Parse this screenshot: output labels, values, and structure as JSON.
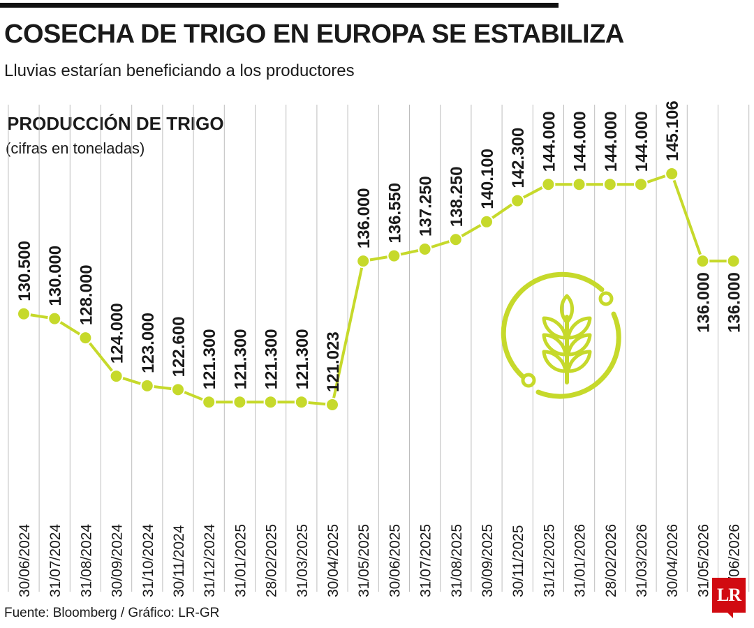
{
  "header": {
    "title": "COSECHA DE TRIGO EN EUROPA SE ESTABILIZA",
    "subtitle": "Lluvias estarían beneficiando a los productores"
  },
  "chart_header": {
    "label": "PRODUCCIÓN DE TRIGO",
    "sublabel": "(cifras en toneladas)"
  },
  "footer": {
    "source": "Fuente: Bloomberg / Gráfico: LR-GR",
    "logo": "LR"
  },
  "colors": {
    "line": "#c6d92b",
    "grid": "#bdbdbd",
    "text": "#1a1a1a",
    "logo": "#d10a11"
  },
  "icon": "wheat-icon",
  "chart_data": {
    "type": "line",
    "title": "PRODUCCIÓN DE TRIGO",
    "subtitle": "(cifras en toneladas)",
    "categories": [
      "30/06/2024",
      "31/07/2024",
      "31/08/2024",
      "30/09/2024",
      "31/10/2024",
      "30/11/2024",
      "31/12/2024",
      "31/01/2025",
      "28/02/2025",
      "31/03/2025",
      "30/04/2025",
      "31/05/2025",
      "30/06/2025",
      "31/07/2025",
      "31/08/2025",
      "30/09/2025",
      "30/11/2025",
      "31/12/2025",
      "31/01/2026",
      "28/02/2026",
      "31/03/2026",
      "30/04/2026",
      "31/05/2026",
      "30/06/2026"
    ],
    "values": [
      130.5,
      130.0,
      128.0,
      124.0,
      123.0,
      122.6,
      121.3,
      121.3,
      121.3,
      121.3,
      121.023,
      136.0,
      136.55,
      137.25,
      138.25,
      140.1,
      142.3,
      144.0,
      144.0,
      144.0,
      144.0,
      145.106,
      136.0,
      136.0
    ],
    "labels": [
      "130.500",
      "130.000",
      "128.000",
      "124.000",
      "123.000",
      "122.600",
      "121.300",
      "121.300",
      "121.300",
      "121.300",
      "121.023",
      "136.000",
      "136.550",
      "137.250",
      "138.250",
      "140.100",
      "142.300",
      "144.000",
      "144.000",
      "144.000",
      "144.000",
      "145.106",
      "136.000",
      "136.000"
    ],
    "ylim": [
      121.023,
      145.106
    ],
    "grid": true,
    "legend": "none"
  }
}
